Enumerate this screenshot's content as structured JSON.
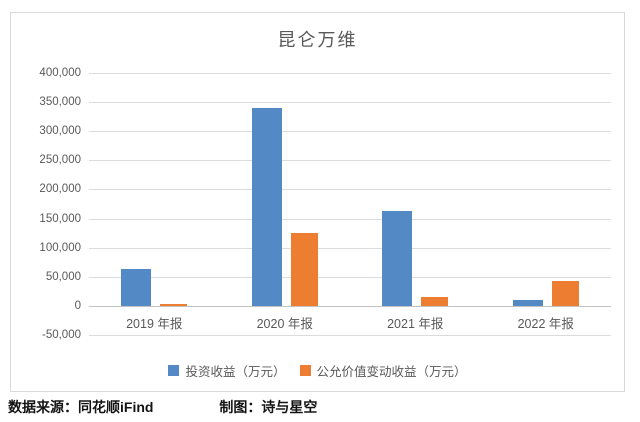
{
  "chart": {
    "title": "昆仑万维",
    "footer": {
      "source": "数据来源：同花顺iFind",
      "credit": "制图：诗与星空"
    }
  },
  "chart_data": {
    "type": "bar",
    "title": "昆仑万维",
    "categories": [
      "2019 年报",
      "2020 年报",
      "2021 年报",
      "2022 年报"
    ],
    "series": [
      {
        "name": "投资收益（万元）",
        "color": "#5389c5",
        "values": [
          64000,
          340000,
          163000,
          10000
        ]
      },
      {
        "name": "公允价值变动收益（万元）",
        "color": "#ed7d31",
        "values": [
          1500,
          125000,
          16000,
          43000
        ]
      }
    ],
    "xlabel": "",
    "ylabel": "",
    "ylim": [
      -50000,
      400000
    ],
    "ytick_step": 50000,
    "yticks": [
      {
        "value": 400000,
        "label": "400,000"
      },
      {
        "value": 350000,
        "label": "350,000"
      },
      {
        "value": 300000,
        "label": "300,000"
      },
      {
        "value": 250000,
        "label": "250,000"
      },
      {
        "value": 200000,
        "label": "200,000"
      },
      {
        "value": 150000,
        "label": "150,000"
      },
      {
        "value": 100000,
        "label": "100,000"
      },
      {
        "value": 50000,
        "label": "50,000"
      },
      {
        "value": 0,
        "label": "0"
      },
      {
        "value": -50000,
        "label": "-50,000"
      }
    ],
    "grid": true,
    "legend_position": "bottom"
  }
}
